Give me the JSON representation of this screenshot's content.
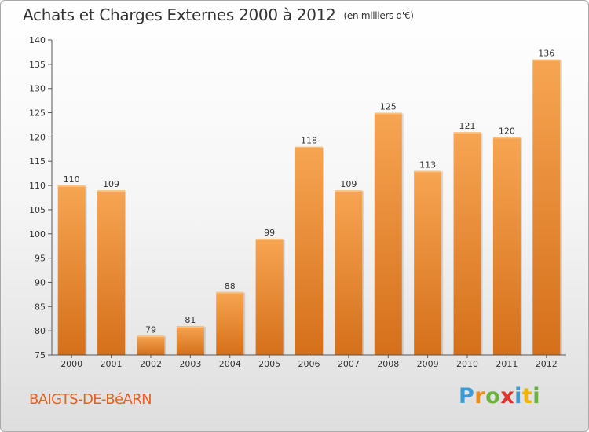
{
  "chart_data": {
    "type": "bar",
    "title": "Achats et Charges Externes 2000 à 2012",
    "subtitle": "(en milliers d'€)",
    "categories": [
      "2000",
      "2001",
      "2002",
      "2003",
      "2004",
      "2005",
      "2006",
      "2007",
      "2008",
      "2009",
      "2010",
      "2011",
      "2012"
    ],
    "values": [
      110,
      109,
      79,
      81,
      88,
      99,
      118,
      109,
      125,
      113,
      121,
      120,
      136
    ],
    "ylim": [
      75,
      140
    ],
    "yticks": [
      75,
      80,
      85,
      90,
      95,
      100,
      105,
      110,
      115,
      120,
      125,
      130,
      135,
      140
    ],
    "grid": false,
    "bar_color": "#e8892e"
  },
  "footer": {
    "commune": "BAIGTS-DE-BéARN",
    "brand_letters": [
      "P",
      "r",
      "o",
      "x",
      "i",
      "t",
      "i"
    ],
    "brand_colors": [
      "#3a9bd6",
      "#f08a1c",
      "#6cb33e",
      "#e4322b",
      "#3a9bd6",
      "#f2b600",
      "#6cb33e"
    ]
  }
}
